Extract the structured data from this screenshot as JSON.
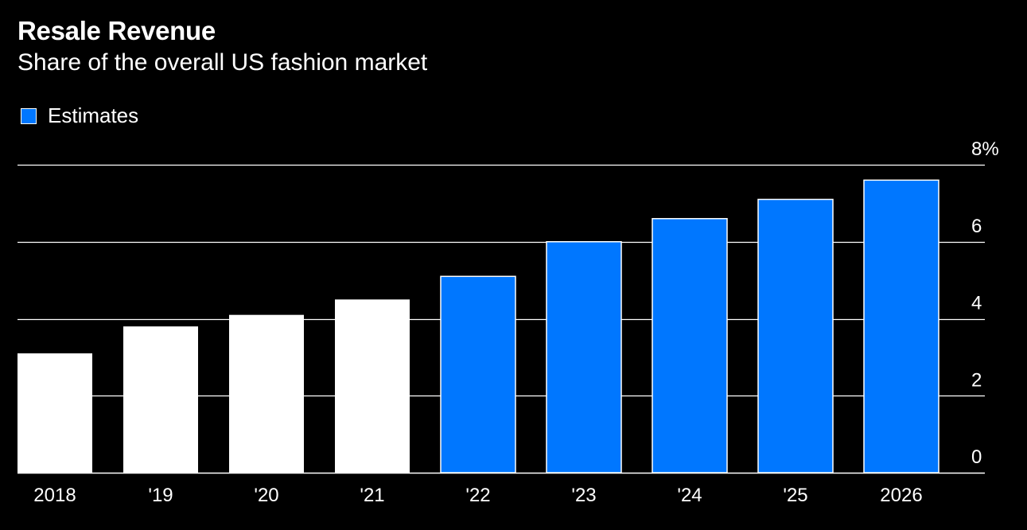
{
  "header": {
    "title": "Resale Revenue",
    "subtitle": "Share of the overall US fashion market"
  },
  "legend": {
    "label": "Estimates",
    "color": "#0077FF"
  },
  "colors": {
    "background": "#000000",
    "actual": "#FFFFFF",
    "estimate": "#0077FF",
    "grid": "#FFFFFF"
  },
  "chart_data": {
    "type": "bar",
    "title": "Resale Revenue",
    "subtitle": "Share of the overall US fashion market",
    "categories": [
      "2018",
      "'19",
      "'20",
      "'21",
      "'22",
      "'23",
      "'24",
      "'25",
      "2026"
    ],
    "values": [
      3.1,
      3.8,
      4.1,
      4.5,
      5.1,
      6.0,
      6.6,
      7.1,
      7.6
    ],
    "estimate": [
      false,
      false,
      false,
      false,
      true,
      true,
      true,
      true,
      true
    ],
    "yticks": [
      "0",
      "2",
      "4",
      "6",
      "8%"
    ],
    "ytick_values": [
      0,
      2,
      4,
      6,
      8
    ],
    "ylim": [
      0,
      8
    ],
    "axis_position": "right",
    "grid": true,
    "legend_position": "top-left"
  }
}
